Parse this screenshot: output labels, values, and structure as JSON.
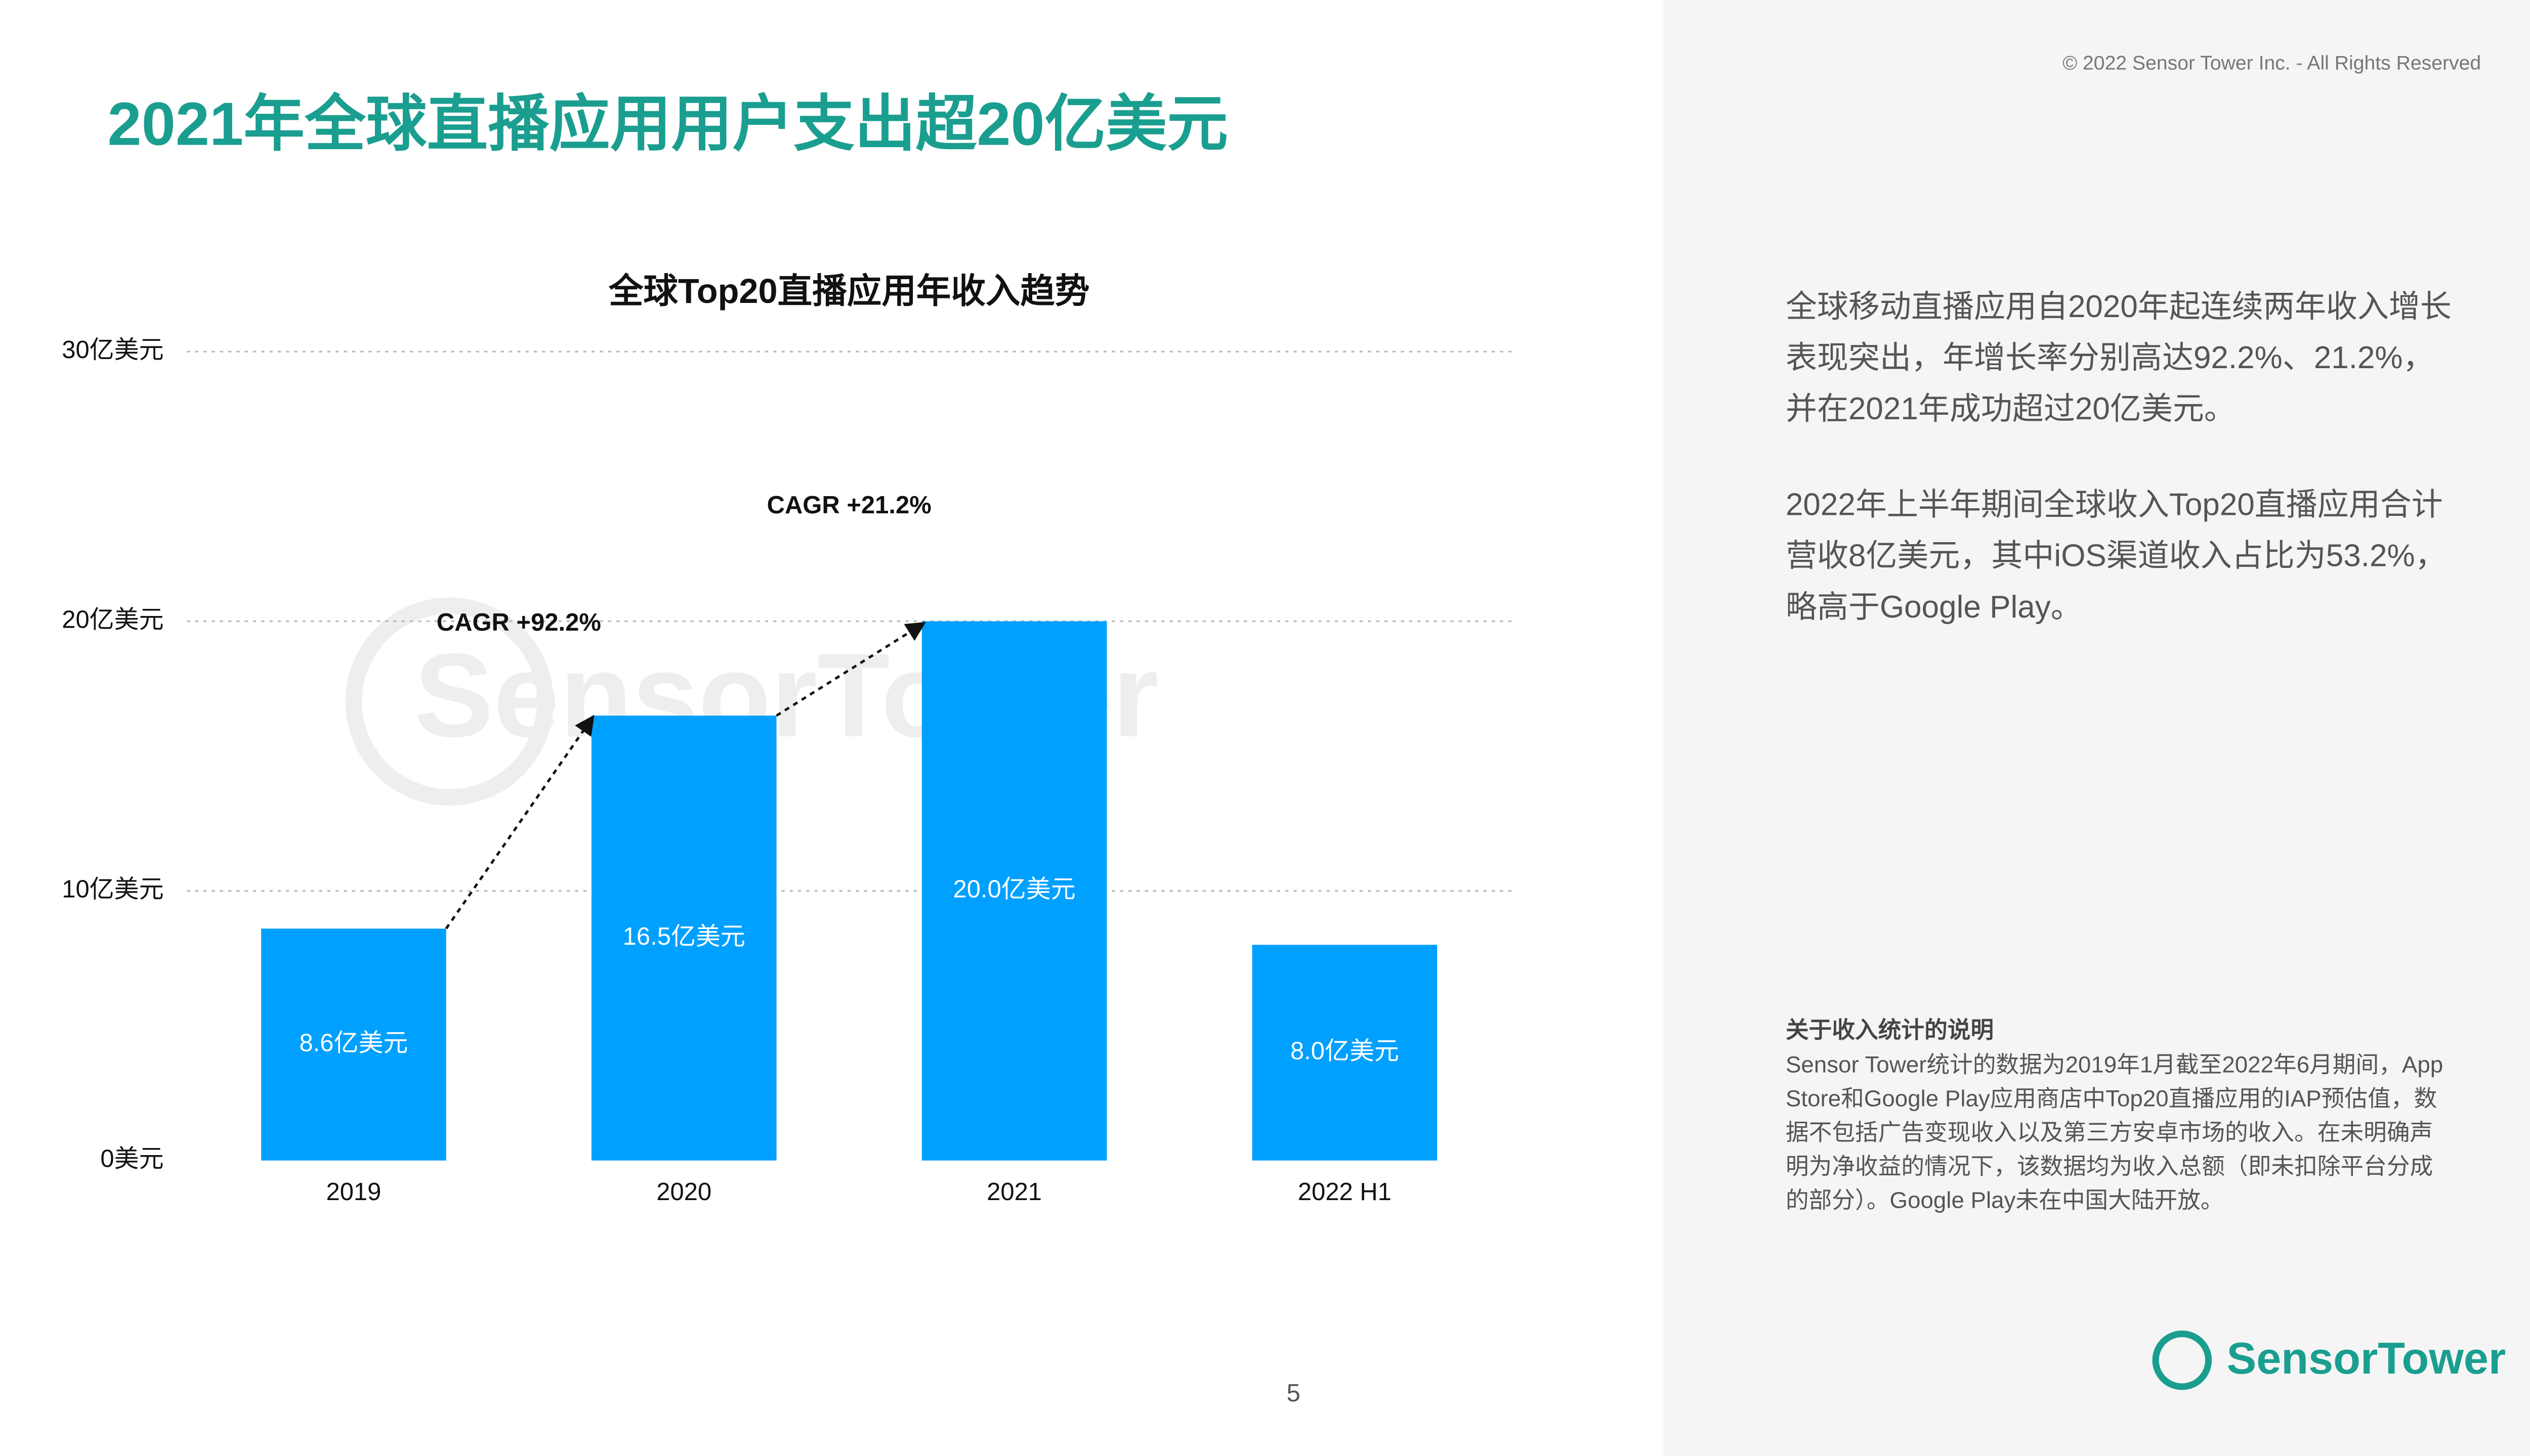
{
  "header": {
    "title": "2021年全球直播应用用户支出超20亿美元",
    "copyright": "© 2022 Sensor Tower Inc. - All Rights Reserved"
  },
  "chart_data": {
    "type": "bar",
    "title": "全球Top20直播应用年收入趋势",
    "categories": [
      "2019",
      "2020",
      "2021",
      "2022 H1"
    ],
    "values": [
      8.6,
      16.5,
      20.0,
      8.0
    ],
    "value_labels": [
      "8.6亿美元",
      "16.5亿美元",
      "20.0亿美元",
      "8.0亿美元"
    ],
    "color": "#00a0ff",
    "ylim": [
      0,
      30
    ],
    "yticks": [
      {
        "value": 0,
        "label": "0美元"
      },
      {
        "value": 10,
        "label": "10亿美元"
      },
      {
        "value": 20,
        "label": "20亿美元"
      },
      {
        "value": 30,
        "label": "30亿美元"
      }
    ],
    "grid": true,
    "annotations": [
      "CAGR +92.2%",
      "CAGR +21.2%"
    ]
  },
  "paragraphs": [
    [
      "全球移动直播应用自2020年起连续两年收入增长",
      "表现突出，年增长率分别高达92.2%、21.2%，",
      "并在2021年成功超过20亿美元。"
    ],
    [
      "2022年上半年期间全球收入Top20直播应用合计",
      "营收8亿美元，其中iOS渠道收入占比为53.2%，",
      "略高于Google Play。"
    ]
  ],
  "note": {
    "title": "关于收入统计的说明",
    "lines": [
      "Sensor Tower统计的数据为2019年1月截至2022年6月期间，App",
      "Store和Google Play应用商店中Top20直播应用的IAP预估值，数",
      "据不包括广告变现收入以及第三方安卓市场的收入。在未明确声",
      "明为净收益的情况下，该数据均为收入总额（即未扣除平台分成",
      "的部分）。Google Play未在中国大陆开放。"
    ]
  },
  "page_number": "5",
  "logo": "SensorTower"
}
